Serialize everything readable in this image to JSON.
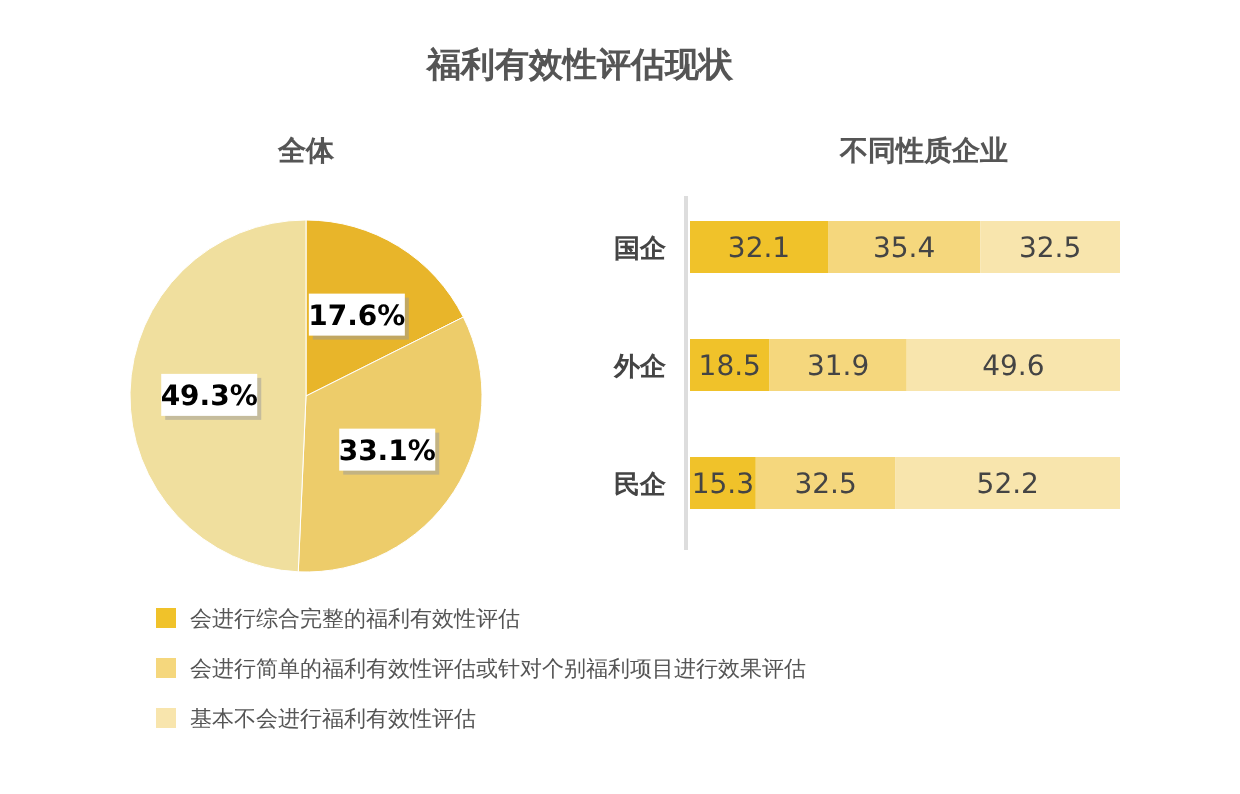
{
  "chart_data": [
    {
      "type": "pie",
      "title": "福利有效性评估现状",
      "subtitle": "全体",
      "categories": [
        null,
        null,
        null
      ],
      "values": [
        17.6,
        33.1,
        49.3
      ],
      "colors": [
        "#e8b52a",
        "#edcc6a",
        "#f0df9e"
      ],
      "value_labels": [
        "17.6%",
        "33.1%",
        "49.3%"
      ]
    },
    {
      "type": "bar",
      "orientation": "horizontal",
      "stacked": true,
      "title": "不同性质企业",
      "categories": [
        "国企",
        "外企",
        "民企"
      ],
      "data_labels": true,
      "legend": "bottom",
      "series": [
        {
          "name": "会进行综合完整的福利有效性评估",
          "color": "#f0c22a",
          "values": [
            32.1,
            18.5,
            15.3
          ]
        },
        {
          "name": "会进行简单的福利有效性评估或针对个别福利项目进行效果评估",
          "color": "#f5d77d",
          "values": [
            35.4,
            31.9,
            32.5
          ]
        },
        {
          "name": "基本不会进行福利有效性评估",
          "color": "#f8e5ad",
          "values": [
            32.5,
            49.6,
            52.2
          ]
        }
      ]
    }
  ]
}
